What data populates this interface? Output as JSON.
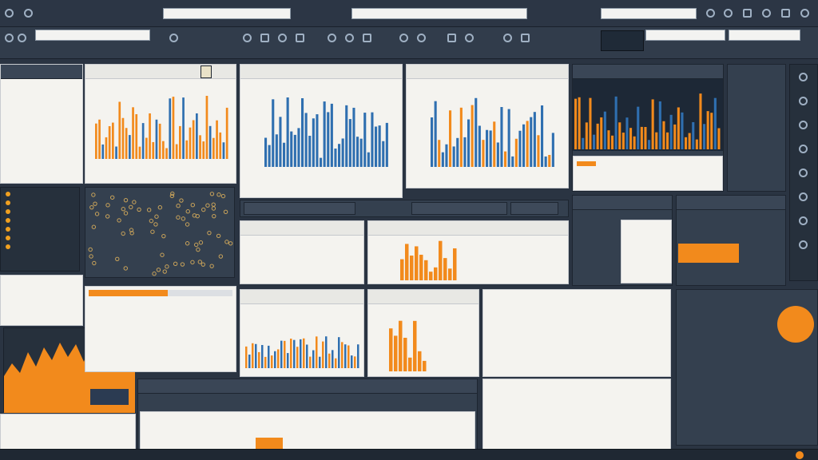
{
  "topbar": {
    "title": "",
    "menu_items": [
      "",
      "",
      "",
      "",
      "",
      "",
      "",
      "",
      "",
      ""
    ],
    "search_value": "",
    "search2_value": ""
  },
  "toolbar": {
    "left_field": "",
    "fields": [
      "",
      "",
      ""
    ],
    "buttons": [
      "",
      "",
      "",
      "",
      "",
      "",
      "",
      "",
      "",
      ""
    ]
  },
  "panels": {
    "p1_title": "",
    "p1_tab": "",
    "p2_title": "",
    "p3_title": "",
    "p4_title": "",
    "p5_title": "",
    "p6_title": "",
    "p7_title": "",
    "p8_title": "",
    "p9_title": "",
    "p10_title": "",
    "p11_title": "",
    "p12_title": ""
  },
  "colors": {
    "accent_orange": "#f28a1c",
    "accent_blue": "#2f6fb0",
    "bg_dark": "#2a3442",
    "panel_light": "#f4f3ef"
  },
  "icons": [
    "menu-icon",
    "search-icon",
    "gear-icon",
    "chart-icon",
    "close-icon",
    "refresh-icon",
    "grid-icon",
    "bell-icon"
  ]
}
